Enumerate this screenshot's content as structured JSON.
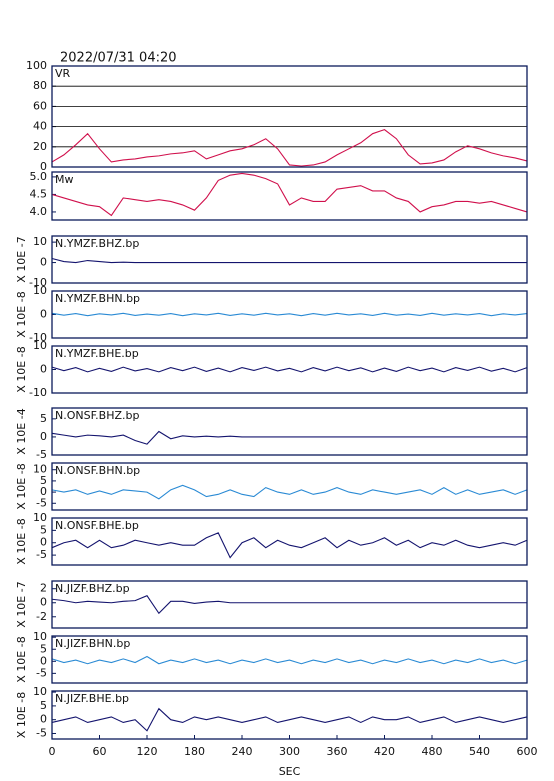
{
  "title": "2022/07/31 04:20",
  "chart_data": [
    {
      "type": "line",
      "title": "VR",
      "color": "#d0104c",
      "grid": true,
      "x": [
        0,
        15,
        30,
        45,
        60,
        75,
        90,
        105,
        120,
        135,
        150,
        165,
        180,
        195,
        210,
        225,
        240,
        255,
        270,
        285,
        300,
        315,
        330,
        345,
        360,
        375,
        390,
        405,
        420,
        435,
        450,
        465,
        480,
        495,
        510,
        525,
        540,
        555,
        570,
        585,
        600
      ],
      "values": [
        5,
        12,
        22,
        33,
        18,
        5,
        7,
        8,
        10,
        11,
        13,
        14,
        16,
        8,
        12,
        16,
        18,
        22,
        28,
        18,
        2,
        1,
        2,
        5,
        12,
        18,
        24,
        33,
        37,
        28,
        12,
        3,
        4,
        7,
        15,
        21,
        18,
        14,
        11,
        9,
        6
      ],
      "xlim": [
        0,
        600
      ],
      "ylim": [
        0,
        100
      ],
      "yticks": [
        0,
        20,
        40,
        60,
        80,
        100
      ]
    },
    {
      "type": "line",
      "title": "Mw",
      "color": "#d0104c",
      "x": [
        0,
        15,
        30,
        45,
        60,
        75,
        90,
        105,
        120,
        135,
        150,
        165,
        180,
        195,
        210,
        225,
        240,
        255,
        270,
        285,
        300,
        315,
        330,
        345,
        360,
        375,
        390,
        405,
        420,
        435,
        450,
        465,
        480,
        495,
        510,
        525,
        540,
        555,
        570,
        585,
        600
      ],
      "values": [
        4.5,
        4.4,
        4.3,
        4.2,
        4.15,
        3.9,
        4.4,
        4.35,
        4.3,
        4.35,
        4.3,
        4.2,
        4.05,
        4.4,
        4.9,
        5.05,
        5.1,
        5.05,
        4.95,
        4.8,
        4.2,
        4.4,
        4.3,
        4.3,
        4.65,
        4.7,
        4.75,
        4.6,
        4.6,
        4.4,
        4.3,
        4.0,
        4.15,
        4.2,
        4.3,
        4.3,
        4.25,
        4.3,
        4.2,
        4.1,
        4.0
      ],
      "xlim": [
        0,
        600
      ],
      "ylim": [
        3.77,
        5.14
      ],
      "yticks": [
        {
          "value": 4,
          "label": "4.0"
        },
        4.5,
        {
          "value": 5,
          "label": "5.0"
        }
      ]
    },
    {
      "type": "line",
      "title": "N.YMZF.BHZ.bp",
      "ylabel": "X 10E -7",
      "color": "#14146e",
      "x": [
        0,
        15,
        30,
        45,
        60,
        75,
        90,
        105,
        120,
        135,
        150,
        165,
        180,
        195,
        210,
        225,
        240,
        255,
        270,
        285,
        300,
        315,
        330,
        345,
        360,
        375,
        390,
        405,
        420,
        435,
        450,
        465,
        480,
        495,
        510,
        525,
        540,
        555,
        570,
        585,
        600
      ],
      "values": [
        2,
        0.5,
        0,
        1,
        0.5,
        0,
        0.2,
        0,
        0,
        0,
        0,
        0,
        0,
        0,
        0,
        0,
        0,
        0,
        0,
        0,
        0,
        0,
        0,
        0,
        0,
        0,
        0,
        0,
        0,
        0,
        0,
        0,
        0,
        0,
        0,
        0,
        0,
        0,
        0,
        0,
        0
      ],
      "xlim": [
        0,
        600
      ],
      "ylim": [
        -10,
        13
      ],
      "yticks": [
        -10,
        0,
        10
      ]
    },
    {
      "type": "line",
      "title": "N.YMZF.BHN.bp",
      "ylabel": "X 10E -8",
      "color": "#2a8ad4",
      "x": [
        0,
        15,
        30,
        45,
        60,
        75,
        90,
        105,
        120,
        135,
        150,
        165,
        180,
        195,
        210,
        225,
        240,
        255,
        270,
        285,
        300,
        315,
        330,
        345,
        360,
        375,
        390,
        405,
        420,
        435,
        450,
        465,
        480,
        495,
        510,
        525,
        540,
        555,
        570,
        585,
        600
      ],
      "values": [
        0.5,
        -0.3,
        0.4,
        -0.5,
        0.3,
        -0.2,
        0.5,
        -0.4,
        0.2,
        -0.3,
        0.4,
        -0.5,
        0.3,
        -0.2,
        0.5,
        -0.4,
        0.3,
        -0.3,
        0.5,
        -0.2,
        0.3,
        -0.5,
        0.4,
        -0.3,
        0.5,
        -0.2,
        0.3,
        -0.4,
        0.5,
        -0.3,
        0.2,
        -0.4,
        0.5,
        -0.3,
        0.3,
        -0.2,
        0.4,
        -0.5,
        0.3,
        -0.2,
        0.4
      ],
      "xlim": [
        0,
        600
      ],
      "ylim": [
        -10,
        10
      ],
      "yticks": [
        -10,
        0,
        10
      ]
    },
    {
      "type": "line",
      "title": "N.YMZF.BHE.bp",
      "ylabel": "X 10E -8",
      "color": "#14146e",
      "x": [
        0,
        15,
        30,
        45,
        60,
        75,
        90,
        105,
        120,
        135,
        150,
        165,
        180,
        195,
        210,
        225,
        240,
        255,
        270,
        285,
        300,
        315,
        330,
        345,
        360,
        375,
        390,
        405,
        420,
        435,
        450,
        465,
        480,
        495,
        510,
        525,
        540,
        555,
        570,
        585,
        600
      ],
      "values": [
        1,
        -0.5,
        0.8,
        -1,
        0.5,
        -0.8,
        1,
        -0.6,
        0.4,
        -1,
        0.8,
        -0.5,
        1,
        -0.8,
        0.6,
        -1,
        0.8,
        -0.4,
        1,
        -0.6,
        0.5,
        -1,
        0.8,
        -0.6,
        1,
        -0.5,
        0.7,
        -1,
        0.6,
        -0.8,
        1,
        -0.5,
        0.6,
        -1,
        0.8,
        -0.4,
        1,
        -0.7,
        0.5,
        -1,
        0.8
      ],
      "xlim": [
        0,
        600
      ],
      "ylim": [
        -10,
        10
      ],
      "yticks": [
        -10,
        0,
        10
      ]
    },
    {
      "type": "line",
      "title": "N.ONSF.BHZ.bp",
      "ylabel": "X 10E -4",
      "color": "#14146e",
      "x": [
        0,
        15,
        30,
        45,
        60,
        75,
        90,
        105,
        120,
        135,
        150,
        165,
        180,
        195,
        210,
        225,
        240,
        255,
        270,
        285,
        300,
        315,
        330,
        345,
        360,
        375,
        390,
        405,
        420,
        435,
        450,
        465,
        480,
        495,
        510,
        525,
        540,
        555,
        570,
        585,
        600
      ],
      "values": [
        1,
        0.5,
        0,
        0.5,
        0.3,
        0,
        0.5,
        -1,
        -2,
        1.5,
        -0.5,
        0.3,
        0,
        0.2,
        0,
        0.2,
        0,
        0,
        0,
        0,
        0,
        0,
        0,
        0,
        0,
        0,
        0,
        0,
        0,
        0,
        0,
        0,
        0,
        0,
        0,
        0,
        0,
        0,
        0,
        0,
        0
      ],
      "xlim": [
        0,
        600
      ],
      "ylim": [
        -5,
        8
      ],
      "yticks": [
        -5,
        0,
        5
      ]
    },
    {
      "type": "line",
      "title": "N.ONSF.BHN.bp",
      "ylabel": "X 10E -8",
      "color": "#2a8ad4",
      "x": [
        0,
        15,
        30,
        45,
        60,
        75,
        90,
        105,
        120,
        135,
        150,
        165,
        180,
        195,
        210,
        225,
        240,
        255,
        270,
        285,
        300,
        315,
        330,
        345,
        360,
        375,
        390,
        405,
        420,
        435,
        450,
        465,
        480,
        495,
        510,
        525,
        540,
        555,
        570,
        585,
        600
      ],
      "values": [
        1,
        0,
        1,
        -1,
        0.5,
        -1,
        1,
        0.5,
        0,
        -3,
        1,
        3,
        1,
        -2,
        -1,
        1,
        -1,
        -2,
        2,
        0,
        -1,
        1,
        -1,
        0,
        2,
        0,
        -1,
        1,
        0,
        -1,
        0,
        1,
        -1,
        2,
        -1,
        1,
        -1,
        0,
        1,
        -1,
        1
      ],
      "xlim": [
        0,
        600
      ],
      "ylim": [
        -8,
        13
      ],
      "yticks": [
        -5,
        0,
        5,
        10
      ]
    },
    {
      "type": "line",
      "title": "N.ONSF.BHE.bp",
      "ylabel": "X 10E -8",
      "color": "#14146e",
      "x": [
        0,
        15,
        30,
        45,
        60,
        75,
        90,
        105,
        120,
        135,
        150,
        165,
        180,
        195,
        210,
        225,
        240,
        255,
        270,
        285,
        300,
        315,
        330,
        345,
        360,
        375,
        390,
        405,
        420,
        435,
        450,
        465,
        480,
        495,
        510,
        525,
        540,
        555,
        570,
        585,
        600
      ],
      "values": [
        -2,
        0,
        1,
        -2,
        1,
        -2,
        -1,
        1,
        0,
        -1,
        0,
        -1,
        -1,
        2,
        4,
        -6,
        0,
        2,
        -2,
        1,
        -1,
        -2,
        0,
        2,
        -2,
        1,
        -1,
        0,
        2,
        -1,
        1,
        -2,
        0,
        -1,
        1,
        -1,
        -2,
        -1,
        0,
        -1,
        1
      ],
      "xlim": [
        0,
        600
      ],
      "ylim": [
        -9,
        10
      ],
      "yticks": [
        -5,
        0,
        5,
        10
      ]
    },
    {
      "type": "line",
      "title": "N.JIZF.BHZ.bp",
      "ylabel": "X 10E -7",
      "color": "#14146e",
      "x": [
        0,
        15,
        30,
        45,
        60,
        75,
        90,
        105,
        120,
        135,
        150,
        165,
        180,
        195,
        210,
        225,
        240,
        255,
        270,
        285,
        300,
        315,
        330,
        345,
        360,
        375,
        390,
        405,
        420,
        435,
        450,
        465,
        480,
        495,
        510,
        525,
        540,
        555,
        570,
        585,
        600
      ],
      "values": [
        0.5,
        0.3,
        0,
        0.2,
        0.1,
        0,
        0.2,
        0.3,
        1,
        -1.5,
        0.2,
        0.2,
        -0.1,
        0.1,
        0.2,
        0,
        0,
        0,
        0,
        0,
        0,
        0,
        0,
        0,
        0,
        0,
        0,
        0,
        0,
        0,
        0,
        0,
        0,
        0,
        0,
        0,
        0,
        0,
        0,
        0,
        0
      ],
      "xlim": [
        0,
        600
      ],
      "ylim": [
        -3.6,
        3.1
      ],
      "yticks": [
        -2,
        0,
        2
      ]
    },
    {
      "type": "line",
      "title": "N.JIZF.BHN.bp",
      "ylabel": "X 10E -8",
      "color": "#2a8ad4",
      "x": [
        0,
        15,
        30,
        45,
        60,
        75,
        90,
        105,
        120,
        135,
        150,
        165,
        180,
        195,
        210,
        225,
        240,
        255,
        270,
        285,
        300,
        315,
        330,
        345,
        360,
        375,
        390,
        405,
        420,
        435,
        450,
        465,
        480,
        495,
        510,
        525,
        540,
        555,
        570,
        585,
        600
      ],
      "values": [
        1,
        -0.5,
        0.5,
        -1,
        0.5,
        -0.5,
        1,
        -0.5,
        2,
        -1,
        0.5,
        -0.5,
        1,
        -0.5,
        0.5,
        -1,
        0.5,
        -0.5,
        1,
        -0.5,
        0.5,
        -1,
        0.5,
        -0.5,
        1,
        -0.5,
        0.5,
        -1,
        0.5,
        -0.5,
        1,
        -0.5,
        0.5,
        -1,
        0.5,
        -0.5,
        1,
        -0.5,
        0.5,
        -1,
        0.5
      ],
      "xlim": [
        0,
        600
      ],
      "ylim": [
        -9,
        10.5
      ],
      "yticks": [
        -5,
        0,
        5,
        10
      ]
    },
    {
      "type": "line",
      "title": "N.JIZF.BHE.bp",
      "ylabel": "X 10E -8",
      "color": "#14146e",
      "xlabel": "SEC",
      "x": [
        0,
        15,
        30,
        45,
        60,
        75,
        90,
        105,
        120,
        135,
        150,
        165,
        180,
        195,
        210,
        225,
        240,
        255,
        270,
        285,
        300,
        315,
        330,
        345,
        360,
        375,
        390,
        405,
        420,
        435,
        450,
        465,
        480,
        495,
        510,
        525,
        540,
        555,
        570,
        585,
        600
      ],
      "values": [
        -1,
        0,
        1,
        -1,
        0,
        1,
        -1,
        0,
        -4,
        4,
        0,
        -1,
        1,
        0,
        1,
        0,
        -1,
        0,
        1,
        -1,
        0,
        1,
        0,
        -1,
        0,
        1,
        -1,
        1,
        0,
        0,
        1,
        -1,
        0,
        1,
        -1,
        0,
        1,
        0,
        -1,
        0,
        1
      ],
      "xlim": [
        0,
        600
      ],
      "ylim": [
        -7,
        10.4
      ],
      "yticks": [
        -5,
        0,
        5,
        10
      ],
      "xticks": [
        0,
        60,
        120,
        180,
        240,
        300,
        360,
        420,
        480,
        540,
        600
      ]
    }
  ]
}
